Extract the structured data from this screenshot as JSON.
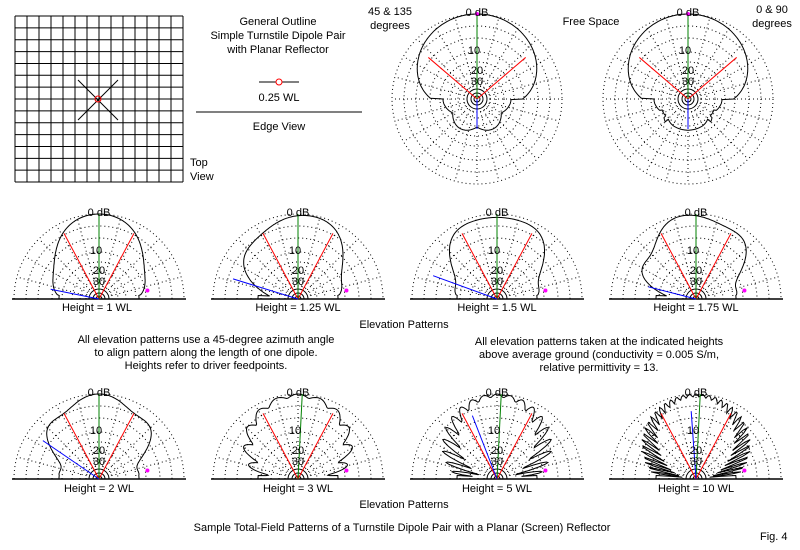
{
  "outline": {
    "title_lines": [
      "General Outline",
      "Simple Turnstile Dipole Pair",
      "with Planar Reflector"
    ],
    "spacing_label": "0.25 WL",
    "edge_view_label": "Edge View",
    "top_view_label": [
      "Top",
      "View"
    ]
  },
  "azimuth_plots": {
    "free_space_label": "Free Space",
    "left_label": [
      "45 & 135",
      "degrees"
    ],
    "right_label": [
      "0 & 90",
      "degrees"
    ]
  },
  "scale_labels": [
    "0 dB",
    "10",
    "20",
    "30"
  ],
  "elevation_row1": {
    "caption": "Elevation Patterns",
    "heights": [
      "Height = 1 WL",
      "Height = 1.25 WL",
      "Height = 1.5 WL",
      "Height = 1.75 WL"
    ],
    "height_values_wl": [
      1,
      1.25,
      1.5,
      1.75
    ]
  },
  "elevation_row2": {
    "caption": "Elevation Patterns",
    "heights": [
      "Height = 2 WL",
      "Height = 3 WL",
      "Height = 5 WL",
      "Height = 10 WL"
    ],
    "height_values_wl": [
      2,
      3,
      5,
      10
    ]
  },
  "notes": {
    "left": [
      "All elevation patterns use a 45-degree azimuth angle",
      "to align pattern along the length of one dipole.",
      "Heights refer to driver feedpoints."
    ],
    "right": [
      "All elevation patterns taken at the indicated heights",
      "above average ground (conductivity = 0.005 S/m,",
      "relative permittivity = 13."
    ]
  },
  "figure_caption": "Sample Total-Field Patterns of a Turnstile Dipole Pair with a Planar (Screen) Reflector",
  "figure_number": "Fig. 4",
  "colors": {
    "beamwidth": "#ff0000",
    "max": "#008000",
    "secondary": "#0000ff",
    "marker": "#ff00ff",
    "feed": "#ff0000"
  }
}
